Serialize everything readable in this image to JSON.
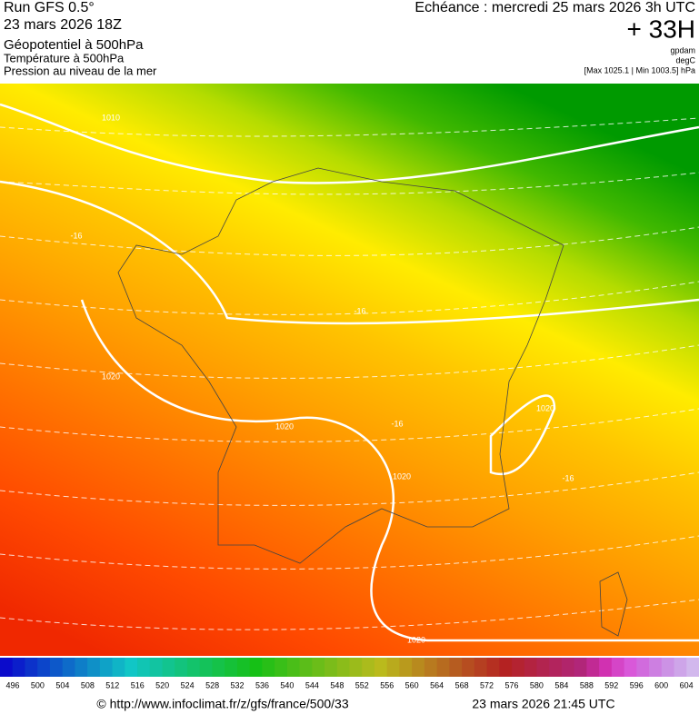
{
  "header": {
    "left": [
      "Run GFS 0.5°",
      "23 mars 2026 18Z",
      "Géopotentiel à 500hPa",
      "Température à 500hPa",
      "Pression au niveau de la mer"
    ],
    "right": {
      "echeance": "Echéance : mercredi 25 mars 2026 3h UTC",
      "lead": "+ 33H",
      "units": [
        "gpdam",
        "degC",
        "[Max 1025.1 | Min 1003.5] hPa"
      ]
    }
  },
  "map": {
    "labels": [
      "1010",
      "-16",
      "1020",
      "-16",
      "1020",
      "-16",
      "1020",
      "1020",
      "-16",
      "1020"
    ]
  },
  "colorbar": {
    "labels": [
      "496",
      "500",
      "504",
      "508",
      "512",
      "516",
      "520",
      "524",
      "528",
      "532",
      "536",
      "540",
      "544",
      "548",
      "552",
      "556",
      "560",
      "564",
      "568",
      "572",
      "576",
      "580",
      "584",
      "588",
      "592",
      "596",
      "600",
      "604"
    ]
  },
  "footer": {
    "url": "© http://www.infoclimat.fr/z/gfs/france/500/33",
    "time": "23 mars 2026 21:45 UTC"
  }
}
